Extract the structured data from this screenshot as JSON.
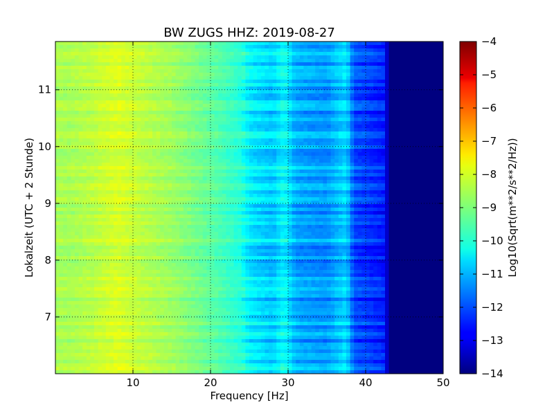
{
  "chart_data": {
    "type": "heatmap",
    "title": "BW ZUGS HHZ: 2019-08-27",
    "xlabel": "Frequency [Hz]",
    "ylabel": "Lokalzeit (UTC + 2 Stunde)",
    "xlim": [
      0,
      50
    ],
    "ylim": [
      11.85,
      6.0
    ],
    "x_ticks": [
      10,
      20,
      30,
      40,
      50
    ],
    "x_tick_labels": [
      "10",
      "20",
      "30",
      "40",
      "50"
    ],
    "y_ticks": [
      7,
      8,
      9,
      10,
      11
    ],
    "y_tick_labels": [
      "7",
      "8",
      "9",
      "10",
      "11"
    ],
    "grid": true,
    "colormap": "jet",
    "colorbar": {
      "label": "Log10(Sqrt(m**2/s**2/Hz))",
      "range": [
        -14,
        -4
      ],
      "ticks": [
        -4,
        -5,
        -6,
        -7,
        -8,
        -9,
        -10,
        -11,
        -12,
        -13,
        -14
      ],
      "tick_labels": [
        "−4",
        "−5",
        "−6",
        "−7",
        "−8",
        "−9",
        "−10",
        "−11",
        "−12",
        "−13",
        "−14"
      ]
    },
    "spectrum_profile": {
      "frequency_hz": [
        0,
        2,
        5,
        8,
        10,
        15,
        20,
        24,
        25,
        28,
        29.5,
        31,
        35,
        37.5,
        38.5,
        41,
        42.5,
        43,
        50
      ],
      "log10_psd": [
        -8.6,
        -8.6,
        -8.4,
        -8.1,
        -8.3,
        -8.7,
        -9.3,
        -9.9,
        -10.4,
        -10.8,
        -10.2,
        -11.1,
        -11.3,
        -10.6,
        -12.0,
        -12.3,
        -12.5,
        -14.0,
        -14.0
      ]
    }
  }
}
